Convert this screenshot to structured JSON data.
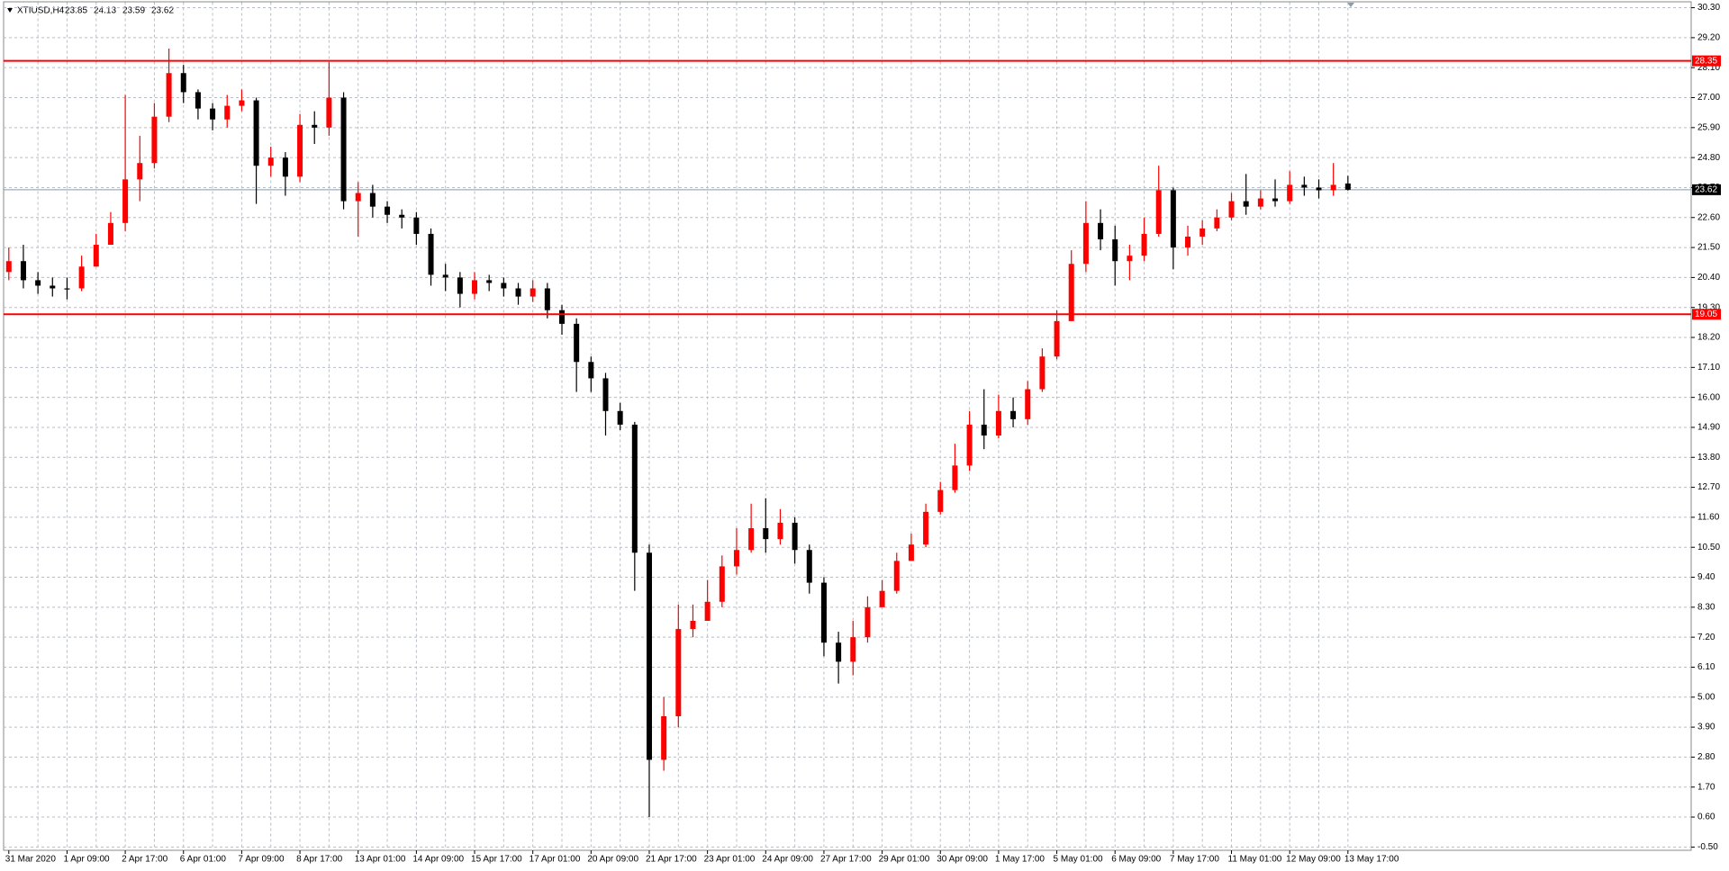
{
  "chart_data": {
    "type": "candlestick",
    "title": "XTIUSD,H4",
    "header_values": [
      23.85,
      24.13,
      23.59,
      23.62
    ],
    "categories": [
      "31 Mar 2020",
      null,
      null,
      null,
      "1 Apr 09:00",
      null,
      null,
      null,
      "2 Apr 17:00",
      null,
      null,
      null,
      "6 Apr 01:00",
      null,
      null,
      null,
      "7 Apr 09:00",
      null,
      null,
      null,
      "8 Apr 17:00",
      null,
      null,
      null,
      "13 Apr 01:00",
      null,
      null,
      null,
      "14 Apr 09:00",
      null,
      null,
      null,
      "15 Apr 17:00",
      null,
      null,
      null,
      "17 Apr 01:00",
      null,
      null,
      null,
      "20 Apr 09:00",
      null,
      null,
      null,
      "21 Apr 17:00",
      null,
      null,
      null,
      "23 Apr 01:00",
      null,
      null,
      null,
      "24 Apr 09:00",
      null,
      null,
      null,
      "27 Apr 17:00",
      null,
      null,
      null,
      "29 Apr 01:00",
      null,
      null,
      null,
      "30 Apr 09:00",
      null,
      null,
      null,
      "1 May 17:00",
      null,
      null,
      null,
      "5 May 01:00",
      null,
      null,
      null,
      "6 May 09:00",
      null,
      null,
      null,
      "7 May 17:00",
      null,
      null,
      null,
      "11 May 01:00",
      null,
      null,
      null,
      "12 May 09:00",
      null,
      null,
      null,
      "13 May 17:00"
    ],
    "open": [
      20.6,
      21.0,
      20.3,
      20.1,
      20.0,
      20.0,
      20.8,
      21.6,
      22.4,
      24.0,
      24.6,
      26.3,
      27.9,
      27.2,
      26.6,
      26.2,
      26.7,
      26.9,
      24.5,
      24.8,
      24.1,
      26.0,
      25.9,
      27.0,
      23.2,
      23.5,
      23.0,
      22.7,
      22.6,
      22.0,
      20.5,
      20.4,
      19.8,
      20.3,
      20.2,
      20.0,
      19.7,
      20.0,
      19.2,
      18.7,
      17.3,
      16.7,
      15.5,
      15.0,
      10.3,
      2.7,
      4.3,
      7.5,
      7.8,
      8.5,
      9.8,
      10.4,
      11.2,
      10.8,
      11.4,
      10.4,
      9.2,
      7.0,
      6.3,
      7.2,
      8.3,
      8.9,
      10.0,
      10.6,
      11.8,
      12.6,
      13.5,
      15.0,
      14.6,
      15.5,
      15.2,
      16.3,
      17.5,
      18.8,
      20.9,
      22.4,
      21.8,
      21.0,
      21.2,
      22.0,
      23.6,
      21.5,
      21.9,
      22.2,
      22.6,
      23.2,
      23.0,
      23.3,
      23.2,
      23.8,
      23.7,
      23.6,
      23.85
    ],
    "high": [
      21.5,
      21.6,
      20.6,
      20.4,
      20.4,
      21.2,
      22.0,
      22.8,
      27.1,
      25.6,
      26.8,
      28.8,
      28.2,
      27.3,
      26.8,
      27.1,
      27.3,
      27.0,
      25.2,
      25.0,
      26.4,
      26.5,
      28.3,
      27.2,
      23.9,
      23.8,
      23.2,
      22.9,
      22.8,
      22.2,
      20.9,
      20.6,
      20.6,
      20.5,
      20.4,
      20.2,
      20.3,
      20.2,
      19.4,
      18.9,
      17.5,
      16.9,
      15.8,
      15.1,
      10.6,
      5.0,
      8.4,
      8.4,
      9.3,
      10.2,
      11.2,
      12.1,
      12.3,
      11.9,
      11.6,
      10.6,
      9.4,
      7.4,
      7.8,
      8.7,
      9.3,
      10.3,
      11.0,
      12.1,
      12.9,
      14.3,
      15.5,
      16.3,
      16.1,
      16.0,
      16.6,
      17.8,
      19.2,
      21.4,
      23.2,
      22.9,
      22.3,
      21.6,
      22.6,
      24.5,
      23.7,
      22.3,
      22.5,
      22.9,
      23.5,
      24.2,
      23.6,
      24.0,
      24.3,
      24.1,
      24.0,
      24.6,
      24.13
    ],
    "low": [
      20.3,
      20.0,
      19.8,
      19.7,
      19.6,
      19.9,
      20.8,
      21.6,
      22.1,
      23.2,
      24.4,
      26.1,
      26.8,
      26.2,
      25.8,
      25.9,
      26.5,
      23.1,
      24.1,
      23.4,
      23.9,
      25.3,
      25.6,
      22.9,
      21.9,
      22.6,
      22.4,
      22.2,
      21.6,
      20.1,
      19.9,
      19.3,
      19.6,
      19.9,
      19.7,
      19.4,
      19.5,
      18.9,
      18.3,
      16.2,
      16.2,
      14.6,
      14.8,
      8.9,
      0.6,
      2.3,
      3.9,
      7.2,
      7.9,
      8.3,
      9.5,
      10.3,
      10.3,
      10.6,
      9.9,
      8.8,
      6.5,
      5.5,
      5.8,
      7.0,
      8.6,
      8.8,
      10.2,
      10.5,
      11.7,
      12.5,
      13.3,
      14.1,
      14.5,
      14.9,
      15.0,
      16.2,
      17.4,
      18.8,
      20.6,
      21.4,
      20.1,
      20.3,
      21.0,
      21.9,
      20.7,
      21.2,
      21.6,
      22.1,
      22.5,
      22.7,
      22.9,
      23.0,
      23.1,
      23.4,
      23.3,
      23.4,
      23.59
    ],
    "close": [
      21.0,
      20.3,
      20.1,
      20.0,
      20.0,
      20.8,
      21.6,
      22.4,
      24.0,
      24.6,
      26.3,
      27.9,
      27.2,
      26.6,
      26.2,
      26.7,
      26.9,
      24.5,
      24.8,
      24.1,
      26.0,
      25.9,
      27.0,
      23.2,
      23.5,
      23.0,
      22.7,
      22.6,
      22.0,
      20.5,
      20.4,
      19.8,
      20.3,
      20.2,
      20.0,
      19.7,
      20.0,
      19.2,
      18.7,
      17.3,
      16.7,
      15.5,
      15.0,
      10.3,
      2.7,
      4.3,
      7.5,
      7.8,
      8.5,
      9.8,
      10.4,
      11.2,
      10.8,
      11.4,
      10.4,
      9.2,
      7.0,
      6.3,
      7.2,
      8.3,
      8.9,
      10.0,
      10.6,
      11.8,
      12.6,
      13.5,
      15.0,
      14.6,
      15.5,
      15.2,
      16.3,
      17.5,
      18.8,
      20.9,
      22.4,
      21.8,
      21.0,
      21.2,
      22.0,
      23.6,
      21.5,
      21.9,
      22.2,
      22.6,
      23.2,
      23.0,
      23.3,
      23.2,
      23.8,
      23.7,
      23.6,
      23.8,
      23.62
    ],
    "bull_color": "#ff0000",
    "bear_color": "#000000",
    "levels": [
      {
        "value": 28.35,
        "color": "#ff0000"
      },
      {
        "value": 19.05,
        "color": "#ff0000"
      }
    ],
    "current_price": 23.62,
    "ylim": [
      -0.62,
      30.5
    ],
    "yticks": [
      {
        "value": 30.3,
        "label": "30.30"
      },
      {
        "value": 29.2,
        "label": "29.20"
      },
      {
        "value": 28.1,
        "label": "28.10"
      },
      {
        "value": 27,
        "label": "27.00"
      },
      {
        "value": 25.9,
        "label": "25.90"
      },
      {
        "value": 24.8,
        "label": "24.80"
      },
      {
        "value": 23.7,
        "label": "23.70"
      },
      {
        "value": 22.6,
        "label": "22.60"
      },
      {
        "value": 21.5,
        "label": "21.50"
      },
      {
        "value": 20.4,
        "label": "20.40"
      },
      {
        "value": 19.3,
        "label": "19.30"
      },
      {
        "value": 18.2,
        "label": "18.20"
      },
      {
        "value": 17.1,
        "label": "17.10"
      },
      {
        "value": 16,
        "label": "16.00"
      },
      {
        "value": 14.9,
        "label": "14.90"
      },
      {
        "value": 13.8,
        "label": "13.80"
      },
      {
        "value": 12.7,
        "label": "12.70"
      },
      {
        "value": 11.6,
        "label": "11.60"
      },
      {
        "value": 10.5,
        "label": "10.50"
      },
      {
        "value": 9.4,
        "label": "9.40"
      },
      {
        "value": 8.3,
        "label": "8.30"
      },
      {
        "value": 7.2,
        "label": "7.20"
      },
      {
        "value": 6.1,
        "label": "6.10"
      },
      {
        "value": 5,
        "label": "5.00"
      },
      {
        "value": 3.9,
        "label": "3.90"
      },
      {
        "value": 2.8,
        "label": "2.80"
      },
      {
        "value": 1.7,
        "label": "1.70"
      },
      {
        "value": 0.6,
        "label": "0.60"
      },
      {
        "value": -0.5,
        "label": "-0.50"
      }
    ],
    "grid": true
  }
}
